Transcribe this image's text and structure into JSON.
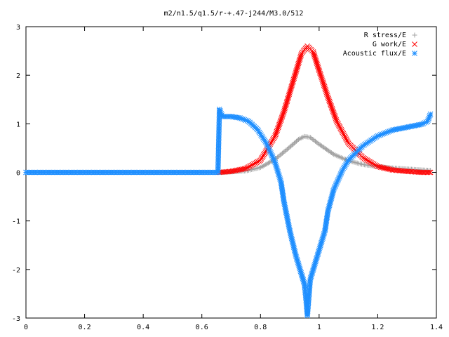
{
  "chart_data": {
    "type": "scatter",
    "title": "m2/n1.5/q1.5/r-+.47-j244/M3.0/512",
    "xlabel": "",
    "ylabel": "",
    "xlim": [
      0,
      1.4
    ],
    "ylim": [
      -3,
      3
    ],
    "xticks": [
      "0",
      "0.2",
      "0.4",
      "0.6",
      "0.8",
      "1",
      "1.2",
      "1.4"
    ],
    "yticks": [
      "3",
      "2",
      "1",
      "0",
      "-1",
      "-2",
      "-3"
    ],
    "grid": false,
    "legend_position": "top-right",
    "series": [
      {
        "name": "R stress/E",
        "marker": "plus",
        "color": "#a0a0a0",
        "points": [
          [
            0.66,
            0.0
          ],
          [
            0.7,
            0.01
          ],
          [
            0.75,
            0.03
          ],
          [
            0.8,
            0.1
          ],
          [
            0.85,
            0.27
          ],
          [
            0.9,
            0.52
          ],
          [
            0.93,
            0.68
          ],
          [
            0.95,
            0.74
          ],
          [
            0.97,
            0.72
          ],
          [
            1.0,
            0.58
          ],
          [
            1.05,
            0.37
          ],
          [
            1.1,
            0.24
          ],
          [
            1.15,
            0.16
          ],
          [
            1.2,
            0.12
          ],
          [
            1.25,
            0.09
          ],
          [
            1.3,
            0.07
          ],
          [
            1.35,
            0.05
          ],
          [
            1.38,
            0.04
          ]
        ]
      },
      {
        "name": "G work/E",
        "marker": "cross",
        "color": "#ff0000",
        "points": [
          [
            0.66,
            0.0
          ],
          [
            0.7,
            0.02
          ],
          [
            0.75,
            0.08
          ],
          [
            0.8,
            0.25
          ],
          [
            0.85,
            0.75
          ],
          [
            0.88,
            1.25
          ],
          [
            0.91,
            1.85
          ],
          [
            0.94,
            2.45
          ],
          [
            0.96,
            2.6
          ],
          [
            0.98,
            2.48
          ],
          [
            1.0,
            2.1
          ],
          [
            1.03,
            1.55
          ],
          [
            1.06,
            1.05
          ],
          [
            1.1,
            0.6
          ],
          [
            1.15,
            0.3
          ],
          [
            1.2,
            0.12
          ],
          [
            1.25,
            0.05
          ],
          [
            1.3,
            0.02
          ],
          [
            1.35,
            0.0
          ],
          [
            1.38,
            0.0
          ]
        ]
      },
      {
        "name": "Acoustic flux/E",
        "marker": "star",
        "color": "#1f8fff",
        "points": [
          [
            0.0,
            0.0
          ],
          [
            0.1,
            0.0
          ],
          [
            0.2,
            0.0
          ],
          [
            0.3,
            0.0
          ],
          [
            0.4,
            0.0
          ],
          [
            0.5,
            0.0
          ],
          [
            0.6,
            0.0
          ],
          [
            0.655,
            0.0
          ],
          [
            0.66,
            1.3
          ],
          [
            0.67,
            1.15
          ],
          [
            0.7,
            1.15
          ],
          [
            0.73,
            1.12
          ],
          [
            0.76,
            1.05
          ],
          [
            0.79,
            0.88
          ],
          [
            0.82,
            0.6
          ],
          [
            0.85,
            0.2
          ],
          [
            0.87,
            -0.2
          ],
          [
            0.88,
            -0.6
          ],
          [
            0.9,
            -1.2
          ],
          [
            0.92,
            -1.7
          ],
          [
            0.94,
            -2.1
          ],
          [
            0.95,
            -2.3
          ],
          [
            0.955,
            -2.6
          ],
          [
            0.96,
            -2.95
          ],
          [
            0.97,
            -2.2
          ],
          [
            0.985,
            -1.9
          ],
          [
            1.0,
            -1.6
          ],
          [
            1.02,
            -1.2
          ],
          [
            1.03,
            -0.8
          ],
          [
            1.05,
            -0.35
          ],
          [
            1.08,
            0.05
          ],
          [
            1.1,
            0.25
          ],
          [
            1.15,
            0.55
          ],
          [
            1.2,
            0.75
          ],
          [
            1.25,
            0.87
          ],
          [
            1.3,
            0.93
          ],
          [
            1.35,
            0.99
          ],
          [
            1.37,
            1.05
          ],
          [
            1.38,
            1.2
          ]
        ]
      }
    ]
  }
}
